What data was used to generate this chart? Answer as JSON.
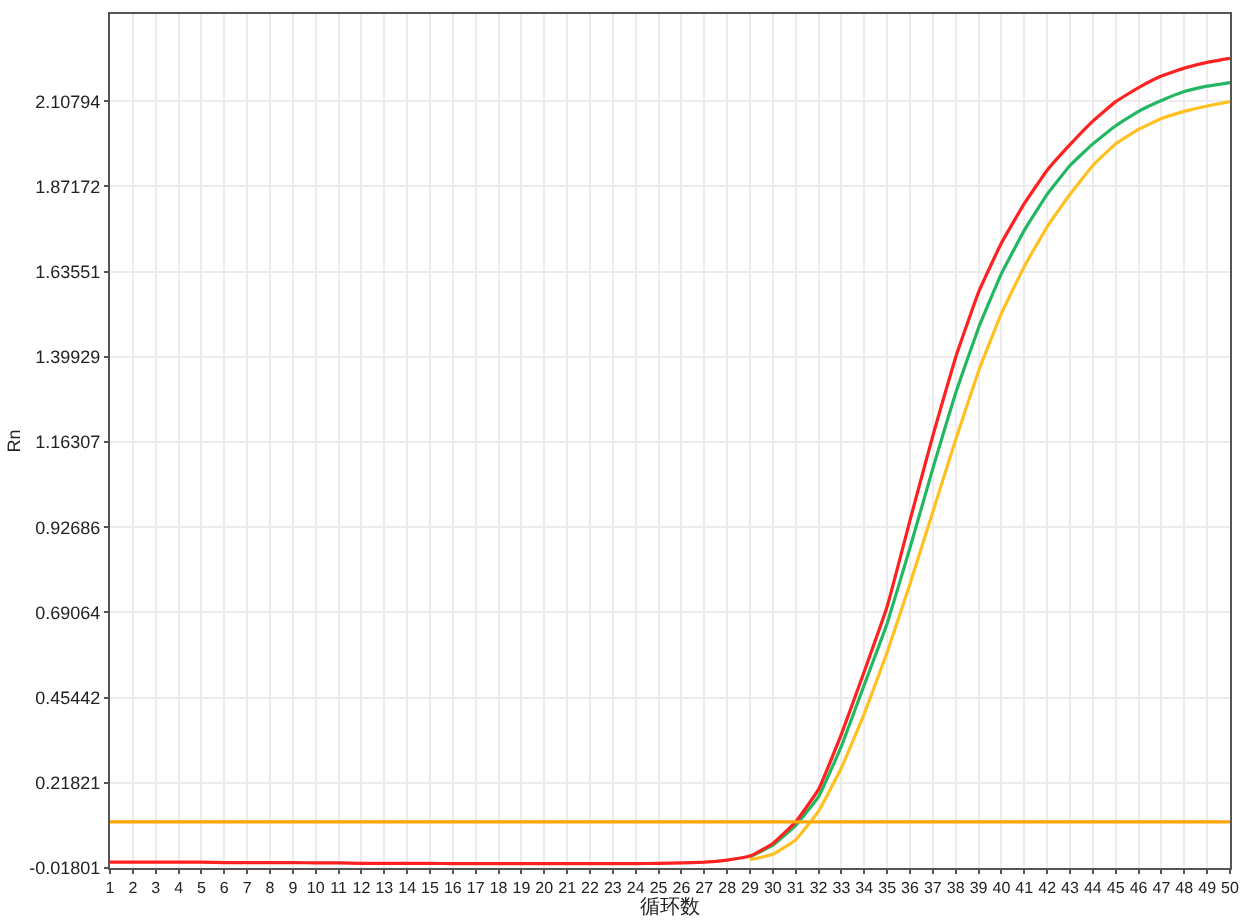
{
  "chart_data": {
    "type": "line",
    "xlabel": "循环数",
    "ylabel": "Rn",
    "x": [
      1,
      2,
      3,
      4,
      5,
      6,
      7,
      8,
      9,
      10,
      11,
      12,
      13,
      14,
      15,
      16,
      17,
      18,
      19,
      20,
      21,
      22,
      23,
      24,
      25,
      26,
      27,
      28,
      29,
      30,
      31,
      32,
      33,
      34,
      35,
      36,
      37,
      38,
      39,
      40,
      41,
      42,
      43,
      44,
      45,
      46,
      47,
      48,
      49,
      50
    ],
    "series": [
      {
        "color": "#22b862",
        "values": [
          null,
          null,
          null,
          null,
          null,
          null,
          null,
          null,
          null,
          null,
          null,
          null,
          null,
          null,
          null,
          null,
          null,
          null,
          null,
          null,
          null,
          null,
          null,
          null,
          null,
          null,
          null,
          null,
          0.013,
          0.045,
          0.1,
          0.18,
          0.32,
          0.49,
          0.66,
          0.87,
          1.09,
          1.3,
          1.48,
          1.63,
          1.75,
          1.85,
          1.93,
          1.99,
          2.04,
          2.08,
          2.11,
          2.135,
          2.15,
          2.16
        ]
      },
      {
        "color": "#ffc020",
        "values": [
          null,
          null,
          null,
          null,
          null,
          null,
          null,
          null,
          null,
          null,
          null,
          null,
          null,
          null,
          null,
          null,
          null,
          null,
          null,
          null,
          null,
          null,
          null,
          null,
          null,
          null,
          null,
          null,
          0.005,
          0.02,
          0.06,
          0.14,
          0.26,
          0.41,
          0.58,
          0.77,
          0.97,
          1.17,
          1.36,
          1.52,
          1.65,
          1.76,
          1.85,
          1.93,
          1.99,
          2.03,
          2.06,
          2.08,
          2.095,
          2.107
        ]
      },
      {
        "color": "#ff2020",
        "values": [
          -0.002,
          -0.002,
          -0.002,
          -0.002,
          -0.002,
          -0.003,
          -0.003,
          -0.003,
          -0.003,
          -0.004,
          -0.004,
          -0.005,
          -0.005,
          -0.005,
          -0.005,
          -0.006,
          -0.006,
          -0.006,
          -0.006,
          -0.006,
          -0.006,
          -0.006,
          -0.006,
          -0.006,
          -0.005,
          -0.004,
          -0.002,
          0.004,
          0.015,
          0.05,
          0.11,
          0.2,
          0.353,
          0.527,
          0.707,
          0.946,
          1.181,
          1.399,
          1.579,
          1.715,
          1.824,
          1.917,
          1.988,
          2.053,
          2.107,
          2.146,
          2.178,
          2.2,
          2.216,
          2.227
        ]
      }
    ],
    "ref_lines": [
      {
        "axis": "y",
        "value": 0.11,
        "color": "#ffa500"
      }
    ],
    "xlim": [
      1,
      50
    ],
    "xticks": [
      1,
      2,
      3,
      4,
      5,
      6,
      7,
      8,
      9,
      10,
      11,
      12,
      13,
      14,
      15,
      16,
      17,
      18,
      19,
      20,
      21,
      22,
      23,
      24,
      25,
      26,
      27,
      28,
      29,
      30,
      31,
      32,
      33,
      34,
      35,
      36,
      37,
      38,
      39,
      40,
      41,
      42,
      43,
      44,
      45,
      46,
      47,
      48,
      49,
      50
    ],
    "ylim": [
      -0.01801,
      2.35
    ],
    "yticks": [
      -0.01801,
      0.21821,
      0.45442,
      0.69064,
      0.92686,
      1.16307,
      1.39929,
      1.63551,
      1.87172,
      2.10794
    ],
    "grid": true,
    "marker": "none",
    "line_style": "solid"
  }
}
